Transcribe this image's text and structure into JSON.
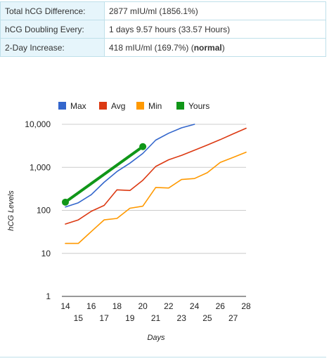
{
  "results": {
    "rows": [
      {
        "label": "Total hCG Difference:",
        "value": "2877 mIU/ml (1856.1%)"
      },
      {
        "label": "hCG Doubling Every:",
        "value": "1 days 9.57 hours (33.57 Hours)"
      },
      {
        "label": "2-Day Increase:",
        "value_prefix": "418 mIU/ml (169.7%) (",
        "value_bold": "normal",
        "value_suffix": ")"
      }
    ]
  },
  "chart_data": {
    "type": "line",
    "title": "",
    "xlabel": "Days",
    "ylabel": "hCG Levels",
    "y_scale": "log",
    "ylim": [
      1,
      10000
    ],
    "xlim": [
      14,
      28
    ],
    "y_ticks": [
      1,
      10,
      100,
      1000,
      10000
    ],
    "y_tick_labels": [
      "1",
      "10",
      "100",
      "1,000",
      "10,000"
    ],
    "x_ticks": [
      14,
      15,
      16,
      17,
      18,
      19,
      20,
      21,
      22,
      23,
      24,
      25,
      26,
      27,
      28
    ],
    "x_tick_labels": [
      "14",
      "15",
      "16",
      "17",
      "18",
      "19",
      "20",
      "21",
      "22",
      "23",
      "24",
      "25",
      "26",
      "27",
      "28"
    ],
    "legend_position": "top-left",
    "grid": "horizontal",
    "series": [
      {
        "name": "Max",
        "color": "#3366cc",
        "x": [
          14,
          15,
          16,
          17,
          18,
          19,
          20,
          21,
          22,
          23,
          24
        ],
        "y": [
          120,
          150,
          230,
          450,
          800,
          1250,
          2100,
          4300,
          6200,
          8300,
          10000
        ]
      },
      {
        "name": "Avg",
        "color": "#dc3912",
        "x": [
          14,
          15,
          16,
          17,
          18,
          19,
          20,
          21,
          22,
          23,
          24,
          25,
          26,
          27,
          28
        ],
        "y": [
          48,
          60,
          95,
          130,
          300,
          290,
          500,
          1050,
          1500,
          1900,
          2500,
          3300,
          4400,
          6000,
          8100
        ]
      },
      {
        "name": "Min",
        "color": "#ff9900",
        "x": [
          14,
          15,
          16,
          17,
          18,
          19,
          20,
          21,
          22,
          23,
          24,
          25,
          26,
          27,
          28
        ],
        "y": [
          17,
          17,
          32,
          60,
          65,
          112,
          125,
          340,
          330,
          520,
          550,
          750,
          1300,
          1700,
          2250
        ]
      },
      {
        "name": "Yours",
        "color": "#109618",
        "x": [
          14,
          20
        ],
        "y": [
          155,
          3032
        ]
      }
    ]
  }
}
